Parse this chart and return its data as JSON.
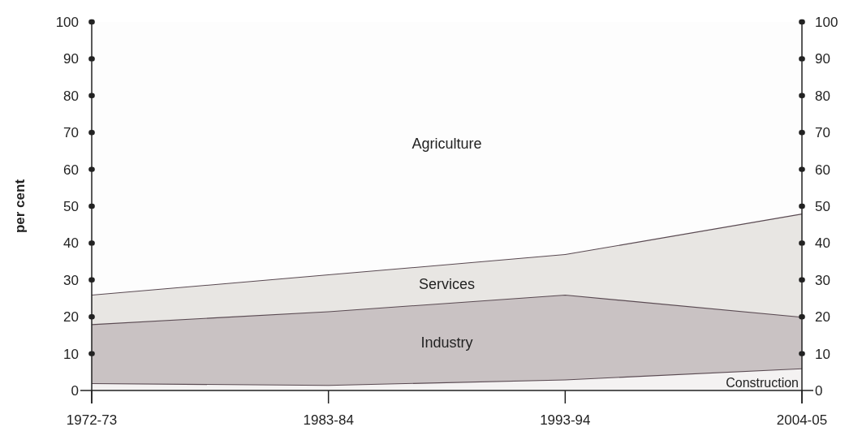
{
  "chart_data": {
    "type": "area",
    "stacked": true,
    "categories": [
      "1972-73",
      "1983-84",
      "1993-94",
      "2004-05"
    ],
    "ylabel": "per cent",
    "ylim": [
      0,
      100
    ],
    "yticks": [
      0,
      10,
      20,
      30,
      40,
      50,
      60,
      70,
      80,
      90,
      100
    ],
    "y2lim": [
      0,
      100
    ],
    "y2ticks": [
      0,
      10,
      20,
      30,
      40,
      50,
      60,
      70,
      80,
      90,
      100
    ],
    "series": [
      {
        "name": "Construction",
        "color": "#f4f2f2",
        "values": [
          2,
          1.5,
          3,
          6
        ]
      },
      {
        "name": "Industry",
        "color": "#c9c2c3",
        "values": [
          16,
          20,
          23,
          14
        ]
      },
      {
        "name": "Services",
        "color": "#e8e6e3",
        "values": [
          8,
          10,
          11,
          28
        ]
      },
      {
        "name": "Agriculture",
        "color": "#fdfdfd",
        "values": [
          74,
          68.5,
          63,
          52
        ]
      }
    ]
  }
}
